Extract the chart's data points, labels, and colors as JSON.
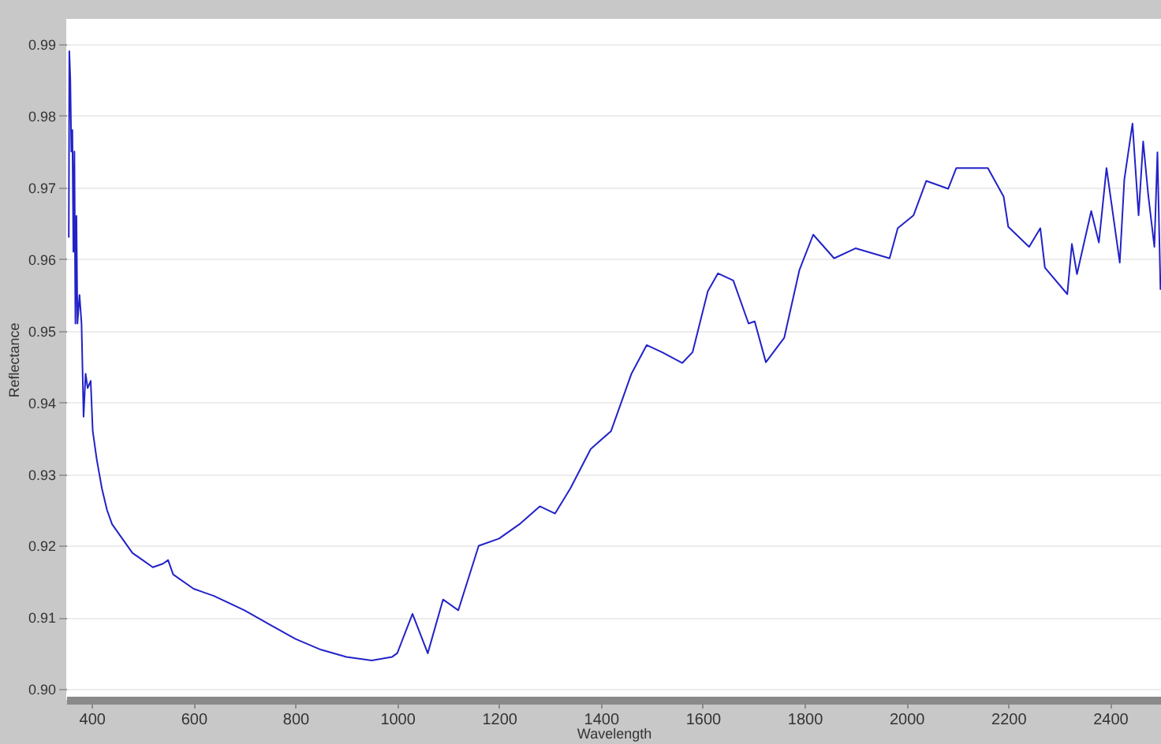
{
  "chart_data": {
    "type": "line",
    "xlabel": "Wavelength",
    "ylabel": "Reflectance",
    "xlim": [
      350,
      2500
    ],
    "ylim": [
      0.8985,
      0.9935
    ],
    "xticks": [
      400,
      600,
      800,
      1000,
      1200,
      1400,
      1600,
      1800,
      2000,
      2200,
      2400
    ],
    "yticks": [
      {
        "value": 0.9,
        "label": "0.90"
      },
      {
        "value": 0.91,
        "label": "0.91"
      },
      {
        "value": 0.92,
        "label": "0.92"
      },
      {
        "value": 0.93,
        "label": "0.93"
      },
      {
        "value": 0.94,
        "label": "0.94"
      },
      {
        "value": 0.95,
        "label": "0.95"
      },
      {
        "value": 0.96,
        "label": "0.96"
      },
      {
        "value": 0.97,
        "label": "0.97"
      },
      {
        "value": 0.98,
        "label": "0.98"
      },
      {
        "value": 0.99,
        "label": "0.99"
      }
    ],
    "grid": "y",
    "marker": "none",
    "line_style": "solid",
    "series": [
      {
        "color": "#2222c8",
        "x": [
          355,
          356,
          358,
          360,
          362,
          364,
          366,
          368,
          370,
          372,
          376,
          380,
          384,
          388,
          392,
          398,
          402,
          410,
          420,
          430,
          440,
          460,
          480,
          500,
          520,
          540,
          550,
          560,
          600,
          620,
          640,
          700,
          750,
          800,
          850,
          900,
          950,
          990,
          1000,
          1030,
          1060,
          1090,
          1120,
          1160,
          1200,
          1240,
          1280,
          1310,
          1340,
          1380,
          1420,
          1460,
          1490,
          1520,
          1560,
          1580,
          1610,
          1630,
          1660,
          1690,
          1702,
          1724,
          1760,
          1790,
          1817,
          1858,
          1900,
          1967,
          1983,
          2014,
          2039,
          2082,
          2098,
          2160,
          2191,
          2200,
          2241,
          2263,
          2272,
          2316,
          2325,
          2335,
          2363,
          2378,
          2393,
          2419,
          2428,
          2444,
          2456,
          2465,
          2475,
          2487,
          2493,
          2499
        ],
        "values": [
          0.963,
          0.989,
          0.985,
          0.975,
          0.978,
          0.961,
          0.975,
          0.951,
          0.966,
          0.951,
          0.955,
          0.951,
          0.938,
          0.944,
          0.942,
          0.943,
          0.936,
          0.932,
          0.928,
          0.925,
          0.923,
          0.921,
          0.919,
          0.918,
          0.917,
          0.9175,
          0.918,
          0.916,
          0.914,
          0.9135,
          0.913,
          0.911,
          0.909,
          0.907,
          0.9055,
          0.9045,
          0.904,
          0.9045,
          0.905,
          0.9105,
          0.905,
          0.9125,
          0.911,
          0.92,
          0.921,
          0.923,
          0.9255,
          0.9245,
          0.928,
          0.9335,
          0.936,
          0.944,
          0.948,
          0.947,
          0.9455,
          0.947,
          0.9555,
          0.958,
          0.957,
          0.951,
          0.9513,
          0.9456,
          0.949,
          0.9585,
          0.9634,
          0.9601,
          0.9615,
          0.9601,
          0.9643,
          0.9661,
          0.9709,
          0.9698,
          0.9727,
          0.9727,
          0.9687,
          0.9645,
          0.9617,
          0.9643,
          0.9588,
          0.9551,
          0.9621,
          0.9579,
          0.9667,
          0.9623,
          0.9727,
          0.9595,
          0.9711,
          0.9789,
          0.9661,
          0.9764,
          0.9689,
          0.9617,
          0.9749,
          0.9557
        ]
      }
    ]
  }
}
